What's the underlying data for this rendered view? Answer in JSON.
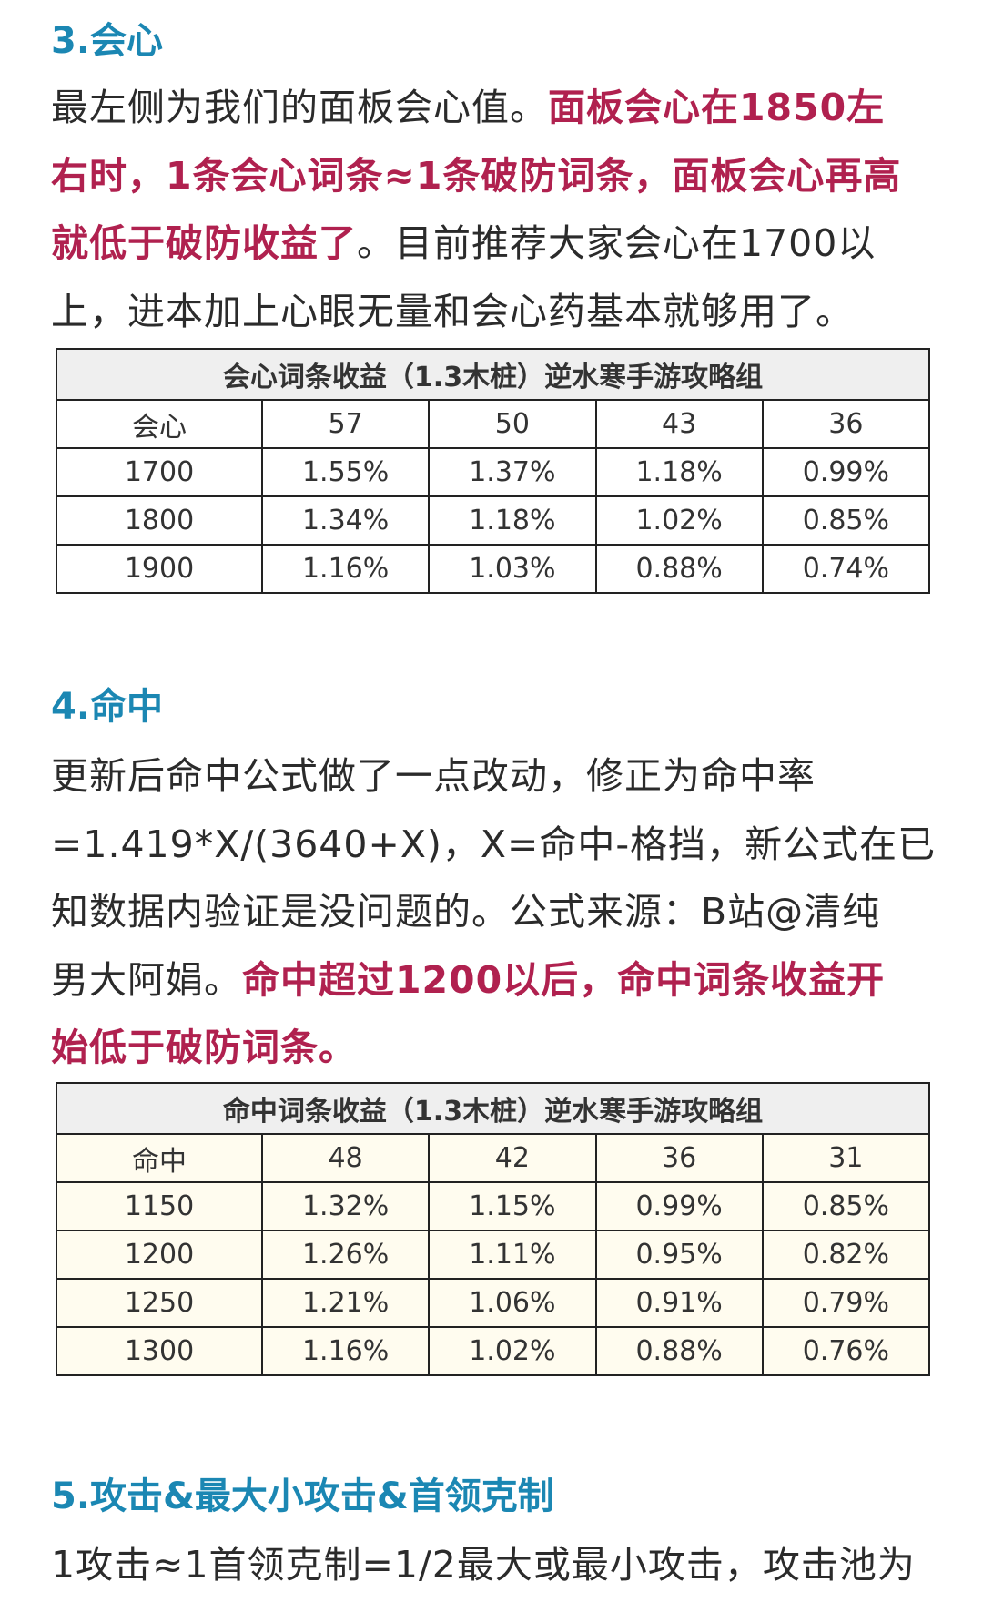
{
  "sections": [
    {
      "heading": "3.会心",
      "lines": [
        [
          {
            "text": "最左侧为我们的面板会心值。",
            "em": false
          },
          {
            "text": "面板会心在1850左",
            "em": true
          }
        ],
        [
          {
            "text": "右时，1条会心词条≈1条破防词条，面板会心再高",
            "em": true
          }
        ],
        [
          {
            "text": "就低于破防收益了",
            "em": true
          },
          {
            "text": "。目前推荐大家会心在1700以",
            "em": false
          }
        ],
        [
          {
            "text": "上，进本加上心眼无量和会心药基本就够用了。",
            "em": false
          }
        ]
      ],
      "table": {
        "title": "会心词条收益（1.3木桩）逆水寒手游攻略组",
        "header": [
          "会心",
          "57",
          "50",
          "43",
          "36"
        ],
        "rows": [
          [
            "1700",
            "1.55%",
            "1.37%",
            "1.18%",
            "0.99%"
          ],
          [
            "1800",
            "1.34%",
            "1.18%",
            "1.02%",
            "0.85%"
          ],
          [
            "1900",
            "1.16%",
            "1.03%",
            "0.88%",
            "0.74%"
          ]
        ]
      }
    },
    {
      "heading": "4.命中",
      "lines": [
        [
          {
            "text": "更新后命中公式做了一点改动，修正为命中率",
            "em": false
          }
        ],
        [
          {
            "text": "=1.419*X/(3640+X)，X=命中-格挡，新公式在已",
            "em": false
          }
        ],
        [
          {
            "text": "知数据内验证是没问题的。公式来源：B站@清纯",
            "em": false
          }
        ],
        [
          {
            "text": "男大阿娟。",
            "em": false
          },
          {
            "text": "命中超过1200以后，命中词条收益开",
            "em": true
          }
        ],
        [
          {
            "text": "始低于破防词条。",
            "em": true
          }
        ]
      ],
      "table": {
        "title": "命中词条收益（1.3木桩）逆水寒手游攻略组",
        "header": [
          "命中",
          "48",
          "42",
          "36",
          "31"
        ],
        "rows": [
          [
            "1150",
            "1.32%",
            "1.15%",
            "0.99%",
            "0.85%"
          ],
          [
            "1200",
            "1.26%",
            "1.11%",
            "0.95%",
            "0.82%"
          ],
          [
            "1250",
            "1.21%",
            "1.06%",
            "0.91%",
            "0.79%"
          ],
          [
            "1300",
            "1.16%",
            "1.02%",
            "0.88%",
            "0.76%"
          ]
        ]
      }
    },
    {
      "heading": "5.攻击&最大小攻击&首领克制",
      "lines": [
        [
          {
            "text": "1攻击≈1首领克制=1/2最大或最小攻击，攻击池为",
            "em": false
          }
        ]
      ]
    }
  ],
  "colors": {
    "heading": "#1b87b3",
    "emphasis": "#b0214f",
    "text": "#2b2b2b"
  }
}
